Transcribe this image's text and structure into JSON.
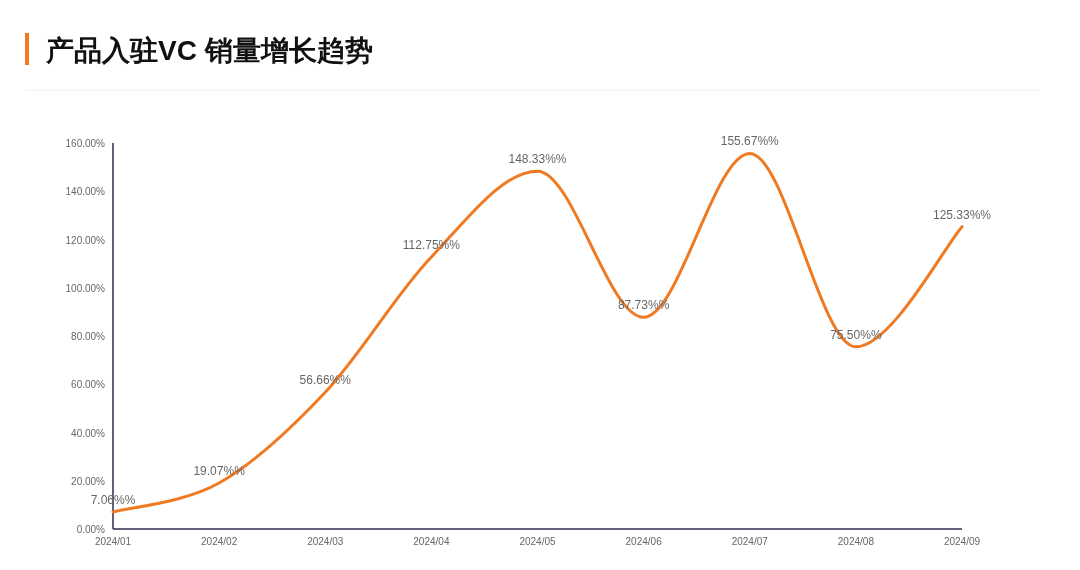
{
  "chart_data": {
    "type": "line",
    "title": "产品入驻VC 销量增长趋势",
    "categories": [
      "2024/01",
      "2024/02",
      "2024/03",
      "2024/04",
      "2024/05",
      "2024/06",
      "2024/07",
      "2024/08",
      "2024/09"
    ],
    "values": [
      7.06,
      19.07,
      56.66,
      112.75,
      148.33,
      87.73,
      155.67,
      75.5,
      125.33
    ],
    "value_labels": [
      "7.06%%",
      "19.07%%",
      "56.66%%",
      "112.75%%",
      "148.33%%",
      "87.73%%",
      "155.67%%",
      "75.50%%",
      "125.33%%"
    ],
    "color": "#f07a22",
    "ylim": [
      0,
      160
    ],
    "yticks": [
      {
        "value": 0,
        "label": "0.00%"
      },
      {
        "value": 20,
        "label": "20.00%"
      },
      {
        "value": 40,
        "label": "40.00%"
      },
      {
        "value": 60,
        "label": "60.00%"
      },
      {
        "value": 80,
        "label": "80.00%"
      },
      {
        "value": 100,
        "label": "100.00%"
      },
      {
        "value": 120,
        "label": "120.00%"
      },
      {
        "value": 140,
        "label": "140.00%"
      },
      {
        "value": 160,
        "label": "160.00%"
      }
    ]
  }
}
